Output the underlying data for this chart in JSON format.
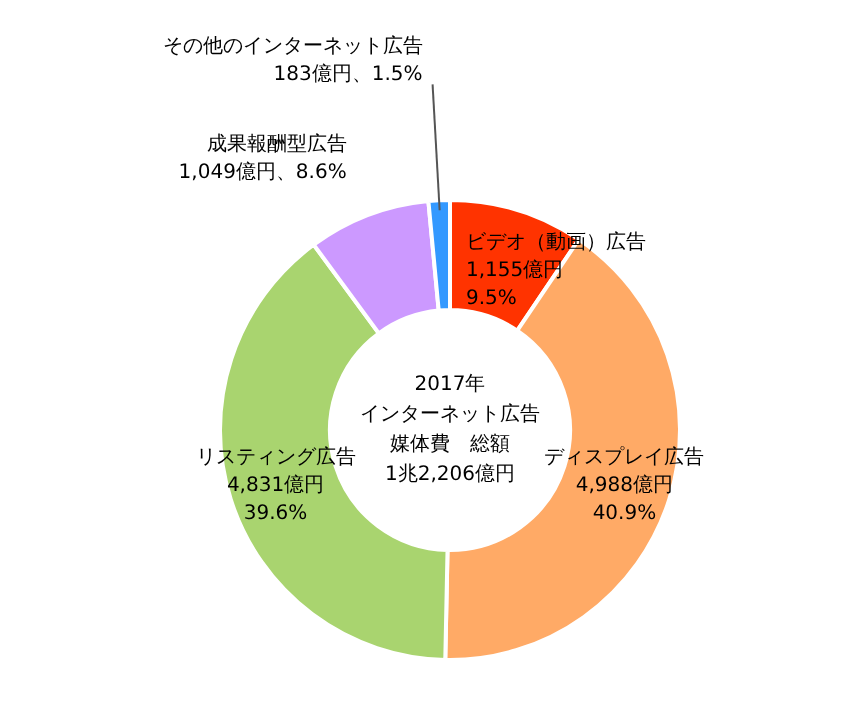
{
  "chart_data": {
    "type": "donut",
    "categories": [
      "ビデオ（動画）広告",
      "ディスプレイ広告",
      "リスティング広告",
      "成果報酬型広告",
      "その他のインターネット広告"
    ],
    "values": [
      1155,
      4988,
      4831,
      1049,
      183
    ],
    "value_labels": [
      "1,155億円\n9.5%",
      "4,988億円\n40.9%",
      "4,831億円\n39.6%",
      "1,049億円、8.6%",
      "183億円、1.5%"
    ],
    "colors": [
      "#ff3300",
      "#ffaa66",
      "#a9d46f",
      "#cc99ff",
      "#3399ff"
    ],
    "annotations": [
      "2017年",
      "インターネット広告",
      "媒体費　総額",
      "1兆2,206億円"
    ]
  }
}
